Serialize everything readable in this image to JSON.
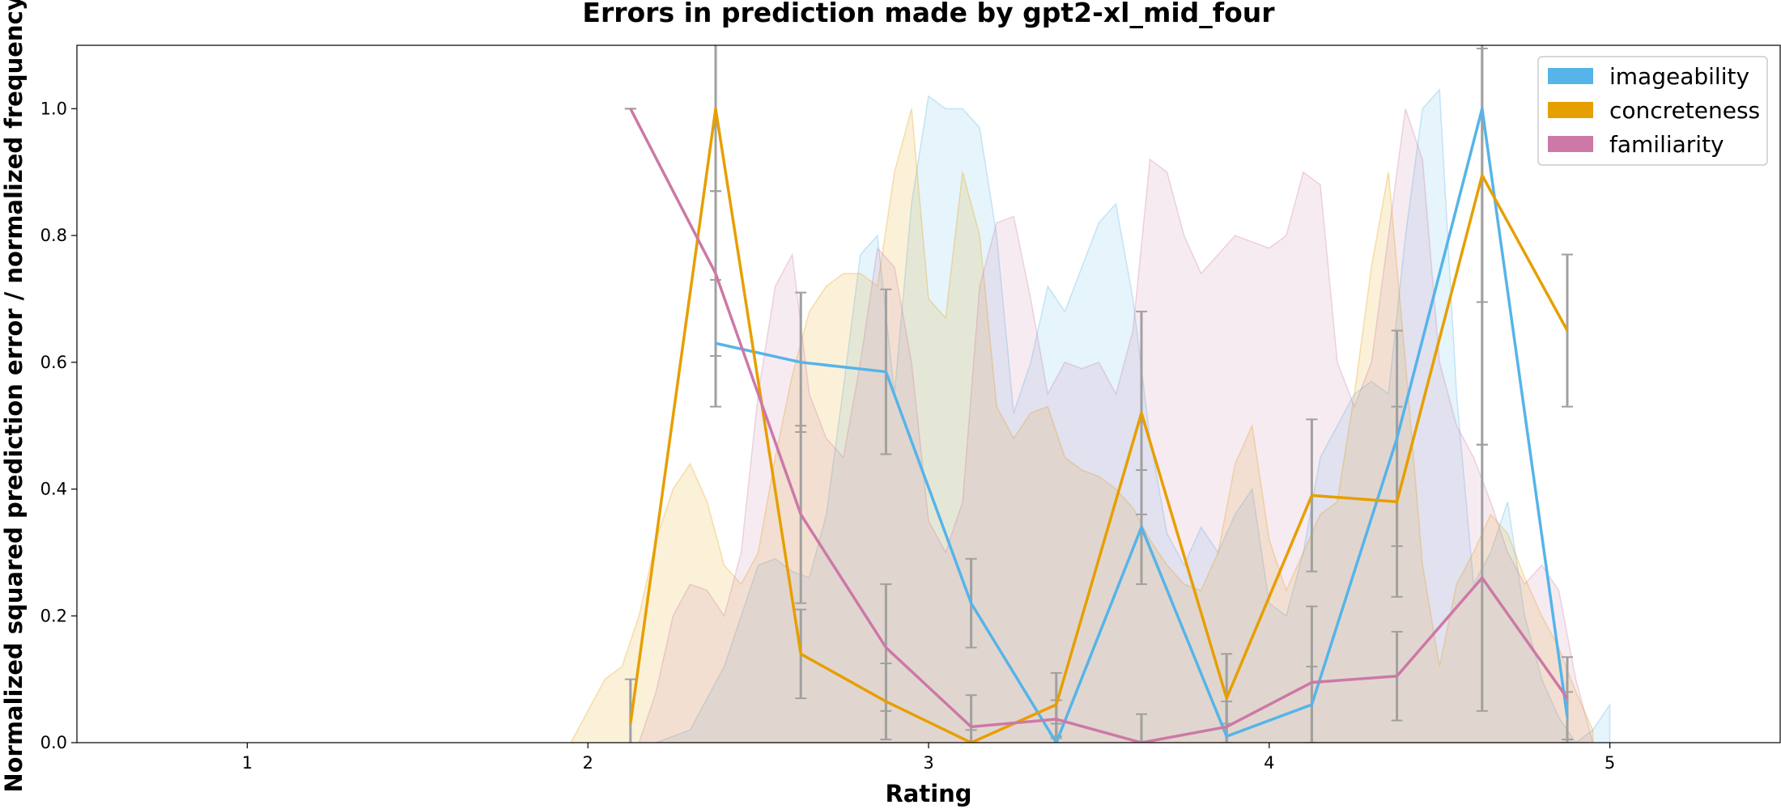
{
  "chart_data": {
    "type": "line",
    "title": "Errors in prediction made by gpt2-xl_mid_four",
    "xlabel": "Rating",
    "ylabel": "Normalized squared prediction error / normalized frequency",
    "xlim": [
      0.5,
      5.5
    ],
    "ylim": [
      0,
      1.1
    ],
    "xticks": [
      "1",
      "2",
      "3",
      "4",
      "5"
    ],
    "yticks": [
      "0.0",
      "0.2",
      "0.4",
      "0.6",
      "0.8",
      "1.0"
    ],
    "grid": false,
    "legend_position": "top-right",
    "error_bar_color": "#a0a0a0",
    "series": [
      {
        "name": "imageability",
        "color": "#56b4e9",
        "x": [
          2.375,
          2.625,
          2.875,
          3.125,
          3.375,
          3.625,
          3.875,
          4.125,
          4.375,
          4.625,
          4.875
        ],
        "y": [
          0.63,
          0.6,
          0.585,
          0.22,
          0.0,
          0.34,
          0.01,
          0.06,
          0.48,
          1.0,
          0.04
        ],
        "yerr": [
          0.1,
          0.11,
          0.13,
          0.07,
          0.03,
          0.09,
          0.02,
          0.06,
          0.17,
          0.53,
          0.04
        ],
        "freq_x": [
          2.2,
          2.3,
          2.4,
          2.5,
          2.55,
          2.6,
          2.65,
          2.7,
          2.75,
          2.8,
          2.85,
          2.9,
          2.95,
          3.0,
          3.05,
          3.1,
          3.15,
          3.2,
          3.25,
          3.3,
          3.35,
          3.4,
          3.45,
          3.5,
          3.55,
          3.6,
          3.65,
          3.7,
          3.75,
          3.8,
          3.85,
          3.9,
          3.95,
          4.0,
          4.05,
          4.1,
          4.15,
          4.2,
          4.25,
          4.3,
          4.35,
          4.4,
          4.45,
          4.5,
          4.55,
          4.6,
          4.65,
          4.7,
          4.75,
          4.8,
          4.85,
          4.9,
          4.95,
          5.0
        ],
        "freq_y": [
          0.0,
          0.02,
          0.12,
          0.28,
          0.29,
          0.27,
          0.26,
          0.36,
          0.56,
          0.77,
          0.8,
          0.55,
          0.85,
          1.02,
          1.0,
          1.0,
          0.97,
          0.8,
          0.52,
          0.6,
          0.72,
          0.68,
          0.75,
          0.82,
          0.85,
          0.7,
          0.48,
          0.33,
          0.28,
          0.34,
          0.3,
          0.36,
          0.4,
          0.22,
          0.2,
          0.3,
          0.45,
          0.5,
          0.55,
          0.57,
          0.55,
          0.8,
          1.0,
          1.03,
          0.55,
          0.25,
          0.3,
          0.38,
          0.2,
          0.1,
          0.04,
          0.0,
          0.02,
          0.06
        ]
      },
      {
        "name": "concreteness",
        "color": "#e69f00",
        "x": [
          2.125,
          2.375,
          2.625,
          2.875,
          3.125,
          3.375,
          3.625,
          3.875,
          4.125,
          4.375,
          4.625,
          4.875
        ],
        "y": [
          0.03,
          1.0,
          0.14,
          0.065,
          0.0,
          0.06,
          0.52,
          0.07,
          0.39,
          0.38,
          0.895,
          0.65
        ],
        "yerr": [
          0.07,
          0.13,
          0.07,
          0.06,
          0.02,
          0.05,
          0.16,
          0.07,
          0.12,
          0.15,
          0.2,
          0.12
        ],
        "freq_x": [
          1.95,
          2.0,
          2.05,
          2.1,
          2.15,
          2.2,
          2.25,
          2.3,
          2.35,
          2.4,
          2.45,
          2.5,
          2.55,
          2.6,
          2.65,
          2.7,
          2.75,
          2.8,
          2.85,
          2.9,
          2.95,
          3.0,
          3.05,
          3.1,
          3.15,
          3.2,
          3.25,
          3.3,
          3.35,
          3.4,
          3.45,
          3.5,
          3.55,
          3.6,
          3.65,
          3.7,
          3.75,
          3.8,
          3.85,
          3.9,
          3.95,
          4.0,
          4.05,
          4.1,
          4.15,
          4.2,
          4.25,
          4.3,
          4.35,
          4.4,
          4.45,
          4.5,
          4.55,
          4.6,
          4.65,
          4.7,
          4.75,
          4.8,
          4.85,
          4.9,
          4.95
        ],
        "freq_y": [
          0.0,
          0.05,
          0.1,
          0.12,
          0.2,
          0.32,
          0.4,
          0.44,
          0.38,
          0.28,
          0.25,
          0.3,
          0.45,
          0.58,
          0.68,
          0.72,
          0.74,
          0.74,
          0.72,
          0.9,
          1.0,
          0.7,
          0.67,
          0.9,
          0.8,
          0.53,
          0.48,
          0.52,
          0.53,
          0.45,
          0.43,
          0.42,
          0.4,
          0.37,
          0.32,
          0.28,
          0.25,
          0.24,
          0.3,
          0.44,
          0.5,
          0.32,
          0.24,
          0.3,
          0.36,
          0.38,
          0.55,
          0.75,
          0.9,
          0.6,
          0.28,
          0.12,
          0.25,
          0.3,
          0.36,
          0.33,
          0.26,
          0.2,
          0.15,
          0.08,
          0.02
        ]
      },
      {
        "name": "familiarity",
        "color": "#cc79a7",
        "x": [
          2.125,
          2.375,
          2.625,
          2.875,
          3.125,
          3.375,
          3.625,
          3.875,
          4.125,
          4.375,
          4.625,
          4.875
        ],
        "y": [
          1.0,
          0.74,
          0.36,
          0.15,
          0.025,
          0.037,
          0.0,
          0.025,
          0.095,
          0.105,
          0.26,
          0.07
        ],
        "yerr": [
          0.0,
          0.13,
          0.14,
          0.1,
          0.05,
          0.03,
          0.045,
          0.04,
          0.12,
          0.07,
          0.21,
          0.065
        ],
        "freq_x": [
          2.15,
          2.2,
          2.25,
          2.3,
          2.35,
          2.4,
          2.45,
          2.5,
          2.55,
          2.6,
          2.65,
          2.7,
          2.75,
          2.8,
          2.85,
          2.9,
          2.95,
          3.0,
          3.05,
          3.1,
          3.15,
          3.2,
          3.25,
          3.3,
          3.35,
          3.4,
          3.45,
          3.5,
          3.55,
          3.6,
          3.65,
          3.7,
          3.75,
          3.8,
          3.85,
          3.9,
          3.95,
          4.0,
          4.05,
          4.1,
          4.15,
          4.2,
          4.25,
          4.3,
          4.35,
          4.4,
          4.45,
          4.5,
          4.55,
          4.6,
          4.65,
          4.7,
          4.75,
          4.8,
          4.85,
          4.9,
          4.95
        ],
        "freq_y": [
          0.0,
          0.08,
          0.2,
          0.25,
          0.24,
          0.2,
          0.3,
          0.55,
          0.72,
          0.77,
          0.55,
          0.48,
          0.45,
          0.6,
          0.78,
          0.75,
          0.6,
          0.35,
          0.3,
          0.38,
          0.72,
          0.82,
          0.83,
          0.7,
          0.55,
          0.6,
          0.59,
          0.6,
          0.55,
          0.65,
          0.92,
          0.9,
          0.8,
          0.74,
          0.77,
          0.8,
          0.79,
          0.78,
          0.8,
          0.9,
          0.88,
          0.6,
          0.53,
          0.6,
          0.8,
          1.0,
          0.92,
          0.6,
          0.5,
          0.45,
          0.38,
          0.3,
          0.25,
          0.28,
          0.24,
          0.1,
          0.0
        ]
      }
    ]
  }
}
